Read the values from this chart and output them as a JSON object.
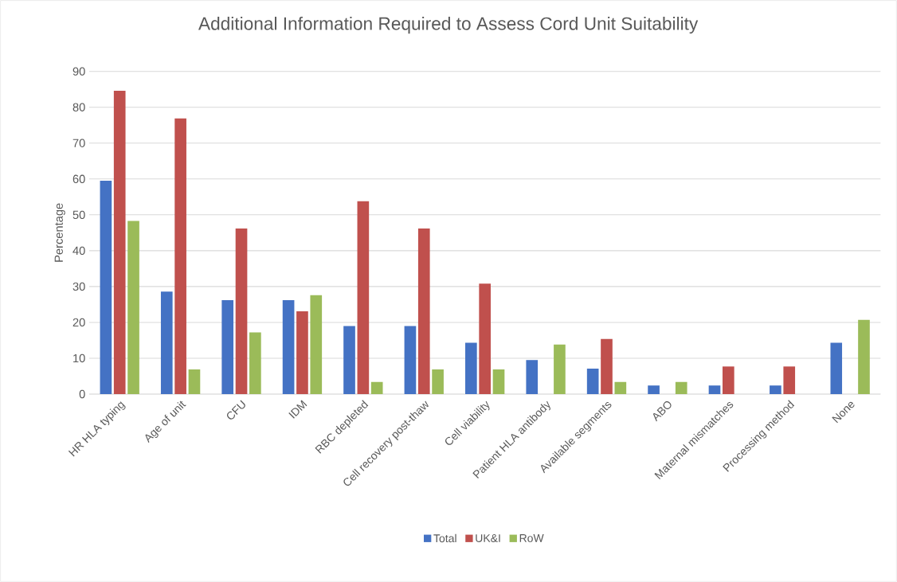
{
  "chart_data": {
    "type": "bar",
    "title": "Additional Information Required to Assess Cord Unit Suitability",
    "ylabel": "Percentage",
    "categories": [
      "HR HLA typing",
      "Age of unit",
      "CFU",
      "IDM",
      "RBC depleted",
      "Cell recovery post-thaw",
      "Cell viability",
      "Patient HLA antibody",
      "Available segments",
      "ABO",
      "Maternal mismatches",
      "Processing method",
      "None"
    ],
    "series": [
      {
        "name": "Total",
        "color": "#4472c4",
        "values": [
          59.5,
          28.6,
          26.2,
          26.2,
          19.0,
          19.0,
          14.3,
          9.5,
          7.1,
          2.4,
          2.4,
          2.4,
          14.3
        ]
      },
      {
        "name": "UK&I",
        "color": "#c0504d",
        "values": [
          84.6,
          76.9,
          46.2,
          23.1,
          53.8,
          46.2,
          30.8,
          0,
          15.4,
          0,
          7.7,
          7.7,
          0
        ]
      },
      {
        "name": "RoW",
        "color": "#9bbb59",
        "values": [
          48.3,
          6.9,
          17.2,
          27.6,
          3.4,
          6.9,
          6.9,
          13.8,
          3.4,
          3.4,
          0,
          0,
          20.7
        ]
      }
    ],
    "ylim": [
      0,
      90
    ],
    "yticks": [
      0,
      10,
      20,
      30,
      40,
      50,
      60,
      70,
      80,
      90
    ],
    "grid": "y",
    "legend": "bottom"
  }
}
